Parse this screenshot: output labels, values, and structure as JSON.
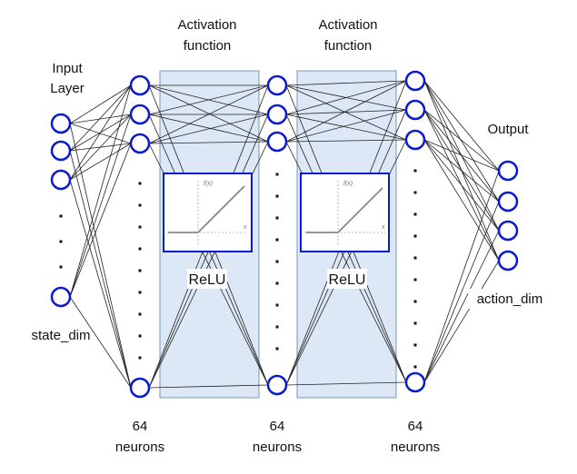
{
  "labels": {
    "input_line1": "Input",
    "input_line2": "Layer",
    "state_dim": "state_dim",
    "activation1_line1": "Activation",
    "activation1_line2": "function",
    "activation2_line1": "Activation",
    "activation2_line2": "function",
    "relu1": "ReLU",
    "relu2": "ReLU",
    "output": "Output",
    "action_dim": "action_dim",
    "hidden1_count": "64",
    "hidden1_unit": "neurons",
    "hidden2_count": "64",
    "hidden2_unit": "neurons",
    "hidden3_count": "64",
    "hidden3_unit": "neurons",
    "plot_fx": "f(x)",
    "plot_x": "x"
  },
  "colors": {
    "node_stroke": "#0a1ad0",
    "panel_fill": "#dce8f5",
    "panel_stroke": "#7a95b8",
    "plot_box_stroke": "#0a1ad0",
    "edge": "#222222",
    "relu_line": "#888888"
  }
}
